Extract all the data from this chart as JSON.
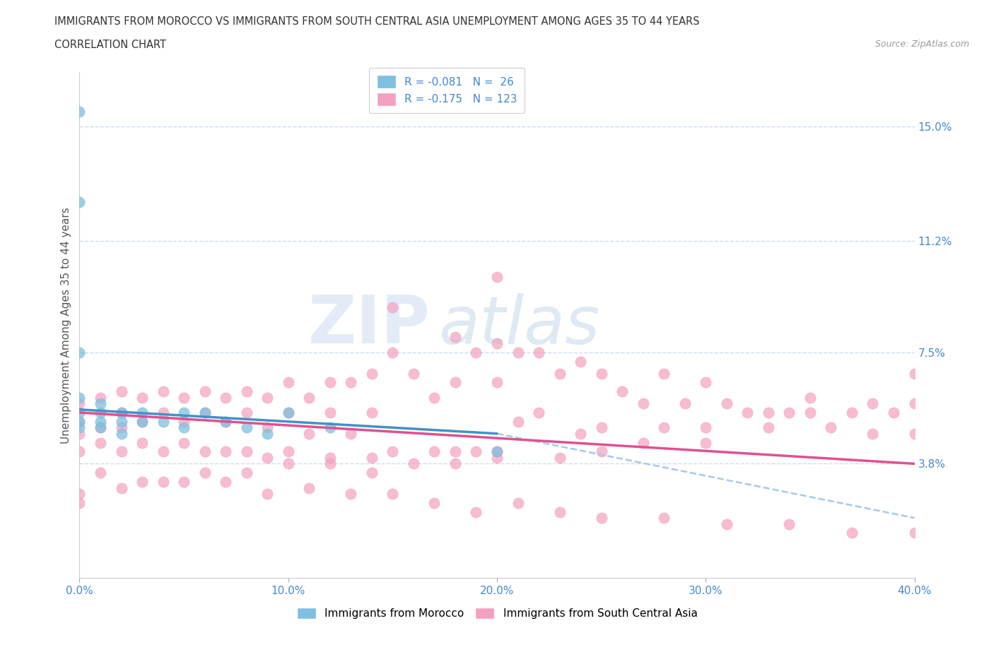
{
  "title_line1": "IMMIGRANTS FROM MOROCCO VS IMMIGRANTS FROM SOUTH CENTRAL ASIA UNEMPLOYMENT AMONG AGES 35 TO 44 YEARS",
  "title_line2": "CORRELATION CHART",
  "source_text": "Source: ZipAtlas.com",
  "ylabel": "Unemployment Among Ages 35 to 44 years",
  "xlim": [
    0.0,
    0.4
  ],
  "ylim": [
    0.0,
    0.168
  ],
  "xtick_labels": [
    "0.0%",
    "10.0%",
    "20.0%",
    "30.0%",
    "40.0%"
  ],
  "xtick_vals": [
    0.0,
    0.1,
    0.2,
    0.3,
    0.4
  ],
  "ytick_labels_right": [
    "15.0%",
    "11.2%",
    "7.5%",
    "3.8%"
  ],
  "ytick_vals_right": [
    0.15,
    0.112,
    0.075,
    0.038
  ],
  "hline_vals": [
    0.15,
    0.112,
    0.075,
    0.038
  ],
  "morocco_R": "-0.081",
  "morocco_N": "26",
  "asia_R": "-0.175",
  "asia_N": "123",
  "color_morocco": "#7fbfdf",
  "color_asia": "#f4a0c0",
  "color_trendline_morocco": "#4292c6",
  "color_trendline_asia": "#e05090",
  "color_dashed_line": "#a8c8e8",
  "color_axis_labels": "#4488cc",
  "color_hline": "#c8ddf0",
  "legend_label_morocco": "Immigrants from Morocco",
  "legend_label_asia": "Immigrants from South Central Asia",
  "watermark_zip": "ZIP",
  "watermark_atlas": "atlas",
  "morocco_x": [
    0.0,
    0.0,
    0.0,
    0.0,
    0.0,
    0.0,
    0.0,
    0.01,
    0.01,
    0.01,
    0.01,
    0.02,
    0.02,
    0.02,
    0.03,
    0.03,
    0.04,
    0.05,
    0.05,
    0.06,
    0.07,
    0.08,
    0.09,
    0.1,
    0.12,
    0.2
  ],
  "morocco_y": [
    0.155,
    0.125,
    0.075,
    0.06,
    0.055,
    0.052,
    0.05,
    0.058,
    0.055,
    0.052,
    0.05,
    0.055,
    0.052,
    0.048,
    0.055,
    0.052,
    0.052,
    0.055,
    0.05,
    0.055,
    0.052,
    0.05,
    0.048,
    0.055,
    0.05,
    0.042
  ],
  "asia_x": [
    0.0,
    0.0,
    0.0,
    0.0,
    0.01,
    0.01,
    0.01,
    0.02,
    0.02,
    0.02,
    0.02,
    0.03,
    0.03,
    0.03,
    0.04,
    0.04,
    0.04,
    0.05,
    0.05,
    0.05,
    0.06,
    0.06,
    0.06,
    0.07,
    0.07,
    0.07,
    0.08,
    0.08,
    0.08,
    0.09,
    0.09,
    0.09,
    0.1,
    0.1,
    0.1,
    0.11,
    0.11,
    0.12,
    0.12,
    0.12,
    0.13,
    0.13,
    0.14,
    0.14,
    0.14,
    0.15,
    0.15,
    0.16,
    0.17,
    0.17,
    0.18,
    0.18,
    0.18,
    0.19,
    0.19,
    0.2,
    0.2,
    0.2,
    0.21,
    0.21,
    0.22,
    0.22,
    0.23,
    0.24,
    0.24,
    0.25,
    0.25,
    0.26,
    0.27,
    0.28,
    0.28,
    0.29,
    0.3,
    0.3,
    0.31,
    0.32,
    0.33,
    0.34,
    0.35,
    0.36,
    0.37,
    0.38,
    0.38,
    0.39,
    0.4,
    0.4,
    0.4,
    0.35,
    0.33,
    0.3,
    0.27,
    0.25,
    0.23,
    0.2,
    0.18,
    0.16,
    0.14,
    0.12,
    0.1,
    0.08,
    0.06,
    0.04,
    0.02,
    0.0,
    0.0,
    0.01,
    0.03,
    0.05,
    0.07,
    0.09,
    0.11,
    0.13,
    0.15,
    0.17,
    0.19,
    0.21,
    0.23,
    0.25,
    0.28,
    0.31,
    0.34,
    0.37,
    0.4,
    0.15,
    0.2
  ],
  "asia_y": [
    0.058,
    0.052,
    0.048,
    0.042,
    0.06,
    0.05,
    0.045,
    0.062,
    0.055,
    0.05,
    0.042,
    0.06,
    0.052,
    0.045,
    0.062,
    0.055,
    0.042,
    0.06,
    0.052,
    0.045,
    0.062,
    0.055,
    0.042,
    0.06,
    0.052,
    0.042,
    0.062,
    0.055,
    0.042,
    0.06,
    0.05,
    0.04,
    0.065,
    0.055,
    0.042,
    0.06,
    0.048,
    0.065,
    0.055,
    0.04,
    0.065,
    0.048,
    0.068,
    0.055,
    0.04,
    0.075,
    0.042,
    0.068,
    0.06,
    0.042,
    0.08,
    0.065,
    0.042,
    0.075,
    0.042,
    0.078,
    0.065,
    0.042,
    0.075,
    0.052,
    0.075,
    0.055,
    0.068,
    0.072,
    0.048,
    0.068,
    0.05,
    0.062,
    0.058,
    0.068,
    0.05,
    0.058,
    0.065,
    0.05,
    0.058,
    0.055,
    0.055,
    0.055,
    0.06,
    0.05,
    0.055,
    0.058,
    0.048,
    0.055,
    0.068,
    0.058,
    0.048,
    0.055,
    0.05,
    0.045,
    0.045,
    0.042,
    0.04,
    0.04,
    0.038,
    0.038,
    0.035,
    0.038,
    0.038,
    0.035,
    0.035,
    0.032,
    0.03,
    0.028,
    0.025,
    0.035,
    0.032,
    0.032,
    0.032,
    0.028,
    0.03,
    0.028,
    0.028,
    0.025,
    0.022,
    0.025,
    0.022,
    0.02,
    0.02,
    0.018,
    0.018,
    0.015,
    0.015,
    0.09,
    0.1
  ]
}
